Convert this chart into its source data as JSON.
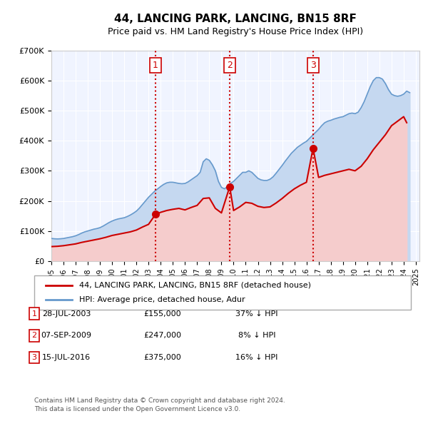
{
  "title": "44, LANCING PARK, LANCING, BN15 8RF",
  "subtitle": "Price paid vs. HM Land Registry's House Price Index (HPI)",
  "legend_label_red": "44, LANCING PARK, LANCING, BN15 8RF (detached house)",
  "legend_label_blue": "HPI: Average price, detached house, Adur",
  "footer_line1": "Contains HM Land Registry data © Crown copyright and database right 2024.",
  "footer_line2": "This data is licensed under the Open Government Licence v3.0.",
  "transactions": [
    {
      "label": "1",
      "date": "28-JUL-2003",
      "price": 155000,
      "pct": "37%",
      "direction": "↓"
    },
    {
      "label": "2",
      "date": "07-SEP-2009",
      "price": 247000,
      "pct": "8%",
      "direction": "↓"
    },
    {
      "label": "3",
      "date": "15-JUL-2016",
      "price": 375000,
      "pct": "16%",
      "direction": "↓"
    }
  ],
  "transaction_dates_decimal": [
    2003.57,
    2009.68,
    2016.54
  ],
  "transaction_prices": [
    155000,
    247000,
    375000
  ],
  "ylabel": "£",
  "ylim": [
    0,
    700000
  ],
  "yticks": [
    0,
    100000,
    200000,
    300000,
    400000,
    500000,
    600000,
    700000
  ],
  "xlim_start": 1995.0,
  "xlim_end": 2025.3,
  "background_color": "#ffffff",
  "plot_bg_color": "#f0f4ff",
  "grid_color": "#ffffff",
  "red_color": "#cc0000",
  "blue_color": "#6699cc",
  "blue_fill_color": "#c5d8f0",
  "red_fill_color": "#f5cccc",
  "vline_color": "#cc0000",
  "marker_color": "#cc0000",
  "box_color": "#cc0000",
  "hpi_data": {
    "years": [
      1995.0,
      1995.25,
      1995.5,
      1995.75,
      1996.0,
      1996.25,
      1996.5,
      1996.75,
      1997.0,
      1997.25,
      1997.5,
      1997.75,
      1998.0,
      1998.25,
      1998.5,
      1998.75,
      1999.0,
      1999.25,
      1999.5,
      1999.75,
      2000.0,
      2000.25,
      2000.5,
      2000.75,
      2001.0,
      2001.25,
      2001.5,
      2001.75,
      2002.0,
      2002.25,
      2002.5,
      2002.75,
      2003.0,
      2003.25,
      2003.5,
      2003.75,
      2004.0,
      2004.25,
      2004.5,
      2004.75,
      2005.0,
      2005.25,
      2005.5,
      2005.75,
      2006.0,
      2006.25,
      2006.5,
      2006.75,
      2007.0,
      2007.25,
      2007.5,
      2007.75,
      2008.0,
      2008.25,
      2008.5,
      2008.75,
      2009.0,
      2009.25,
      2009.5,
      2009.75,
      2010.0,
      2010.25,
      2010.5,
      2010.75,
      2011.0,
      2011.25,
      2011.5,
      2011.75,
      2012.0,
      2012.25,
      2012.5,
      2012.75,
      2013.0,
      2013.25,
      2013.5,
      2013.75,
      2014.0,
      2014.25,
      2014.5,
      2014.75,
      2015.0,
      2015.25,
      2015.5,
      2015.75,
      2016.0,
      2016.25,
      2016.5,
      2016.75,
      2017.0,
      2017.25,
      2017.5,
      2017.75,
      2018.0,
      2018.25,
      2018.5,
      2018.75,
      2019.0,
      2019.25,
      2019.5,
      2019.75,
      2020.0,
      2020.25,
      2020.5,
      2020.75,
      2021.0,
      2021.25,
      2021.5,
      2021.75,
      2022.0,
      2022.25,
      2022.5,
      2022.75,
      2023.0,
      2023.25,
      2023.5,
      2023.75,
      2024.0,
      2024.25,
      2024.5
    ],
    "values": [
      75000,
      74000,
      73500,
      74000,
      75000,
      77000,
      79000,
      81000,
      84000,
      88000,
      93000,
      97000,
      100000,
      103000,
      106000,
      108000,
      111000,
      116000,
      122000,
      128000,
      133000,
      137000,
      140000,
      142000,
      144000,
      148000,
      153000,
      159000,
      166000,
      176000,
      188000,
      200000,
      212000,
      222000,
      232000,
      240000,
      248000,
      255000,
      260000,
      262000,
      262000,
      260000,
      258000,
      257000,
      258000,
      263000,
      270000,
      277000,
      284000,
      295000,
      330000,
      340000,
      335000,
      320000,
      300000,
      265000,
      245000,
      240000,
      248000,
      258000,
      265000,
      275000,
      285000,
      295000,
      295000,
      300000,
      295000,
      285000,
      275000,
      270000,
      268000,
      268000,
      272000,
      280000,
      292000,
      305000,
      318000,
      332000,
      345000,
      358000,
      368000,
      378000,
      385000,
      392000,
      398000,
      408000,
      418000,
      428000,
      438000,
      450000,
      460000,
      465000,
      468000,
      472000,
      475000,
      478000,
      480000,
      485000,
      490000,
      492000,
      490000,
      495000,
      510000,
      530000,
      555000,
      580000,
      600000,
      610000,
      610000,
      605000,
      590000,
      570000,
      555000,
      550000,
      548000,
      550000,
      555000,
      565000,
      560000
    ]
  },
  "red_data": {
    "years": [
      1995.0,
      1995.5,
      1996.0,
      1996.5,
      1997.0,
      1997.5,
      1998.0,
      1998.5,
      1999.0,
      1999.5,
      2000.0,
      2000.5,
      2001.0,
      2001.5,
      2002.0,
      2002.5,
      2003.0,
      2003.57,
      2004.0,
      2004.5,
      2005.0,
      2005.5,
      2006.0,
      2006.5,
      2007.0,
      2007.5,
      2008.0,
      2008.5,
      2009.0,
      2009.68,
      2010.0,
      2010.5,
      2011.0,
      2011.5,
      2012.0,
      2012.5,
      2013.0,
      2013.5,
      2014.0,
      2014.5,
      2015.0,
      2015.5,
      2016.0,
      2016.54,
      2017.0,
      2017.5,
      2018.0,
      2018.5,
      2019.0,
      2019.5,
      2020.0,
      2020.5,
      2021.0,
      2021.5,
      2022.0,
      2022.5,
      2023.0,
      2023.5,
      2024.0,
      2024.25
    ],
    "values": [
      48000,
      49000,
      51000,
      54000,
      57000,
      62000,
      66000,
      70000,
      74000,
      79000,
      85000,
      89000,
      93000,
      97000,
      103000,
      113000,
      122000,
      155000,
      162000,
      168000,
      172000,
      175000,
      170000,
      178000,
      185000,
      208000,
      210000,
      175000,
      160000,
      247000,
      168000,
      180000,
      195000,
      192000,
      182000,
      178000,
      180000,
      193000,
      208000,
      225000,
      240000,
      252000,
      262000,
      375000,
      278000,
      285000,
      290000,
      295000,
      300000,
      305000,
      300000,
      315000,
      340000,
      370000,
      395000,
      420000,
      450000,
      465000,
      480000,
      460000
    ]
  }
}
